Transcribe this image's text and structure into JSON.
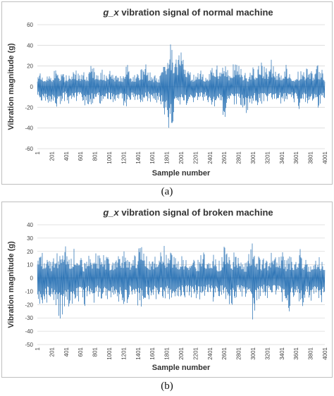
{
  "chart_data": [
    {
      "type": "line",
      "title_prefix": "g_x",
      "title_rest": " vibration signal of normal machine",
      "xlabel": "Sample number",
      "ylabel": "Vibration magnitude (g)",
      "ylim": [
        -60,
        60
      ],
      "yticks": [
        -60,
        -40,
        -20,
        0,
        20,
        40,
        60
      ],
      "xlim": [
        1,
        4001
      ],
      "xticks": [
        1,
        201,
        401,
        601,
        801,
        1001,
        1201,
        1401,
        1601,
        1801,
        2001,
        2201,
        2401,
        2601,
        2801,
        3001,
        3201,
        3401,
        3601,
        3801,
        4001
      ],
      "grid": true,
      "color": "#2e75b6",
      "series": [
        {
          "x_step": 50,
          "envelope_max": [
            14,
            13,
            12,
            15,
            11,
            20,
            12,
            14,
            12,
            14,
            21,
            17,
            15,
            14,
            12,
            28,
            17,
            14,
            18,
            11,
            22,
            13,
            12,
            15,
            12,
            23,
            10,
            14,
            12,
            18,
            24,
            15,
            12,
            11,
            10,
            24,
            18,
            42,
            31,
            30,
            35,
            26,
            16,
            14,
            12,
            20,
            14,
            12,
            14,
            29,
            25,
            16,
            22,
            16,
            20,
            29,
            26,
            15,
            14,
            13,
            22,
            16,
            30,
            21,
            20,
            28,
            17,
            19,
            17,
            21,
            22,
            15,
            13,
            17,
            14,
            18,
            21,
            14,
            21,
            19,
            11
          ],
          "envelope_min": [
            -13,
            -14,
            -12,
            -20,
            -16,
            -18,
            -27,
            -15,
            -13,
            -18,
            -16,
            -15,
            -15,
            -20,
            -17,
            -18,
            -19,
            -14,
            -22,
            -17,
            -15,
            -15,
            -14,
            -13,
            -19,
            -20,
            -14,
            -15,
            -21,
            -18,
            -16,
            -13,
            -17,
            -16,
            -17,
            -28,
            -38,
            -48,
            -36,
            -16,
            -20,
            -19,
            -29,
            -16,
            -14,
            -16,
            -13,
            -16,
            -26,
            -20,
            -21,
            -14,
            -35,
            -14,
            -17,
            -20,
            -17,
            -19,
            -29,
            -23,
            -15,
            -20,
            -19,
            -15,
            -20,
            -17,
            -21,
            -14,
            -18,
            -14,
            -17,
            -15,
            -16,
            -25,
            -15,
            -21,
            -14,
            -15,
            -28,
            -16,
            -18
          ]
        }
      ]
    },
    {
      "type": "line",
      "title_prefix": "g_x",
      "title_rest": " vibration signal of broken machine",
      "xlabel": "Sample number",
      "ylabel": "Vibration magnitude (g)",
      "ylim": [
        -50,
        40
      ],
      "yticks": [
        -50,
        -40,
        -30,
        -20,
        -10,
        0,
        10,
        20,
        30,
        40
      ],
      "xlim": [
        1,
        4001
      ],
      "xticks": [
        1,
        201,
        401,
        601,
        801,
        1001,
        1201,
        1401,
        1601,
        1801,
        2001,
        2201,
        2401,
        2601,
        2801,
        3001,
        3201,
        3401,
        3601,
        3801,
        4001
      ],
      "grid": true,
      "color": "#2e75b6",
      "series": [
        {
          "x_step": 50,
          "envelope_max": [
            17,
            22,
            14,
            18,
            14,
            21,
            20,
            36,
            25,
            18,
            22,
            28,
            20,
            13,
            22,
            15,
            25,
            18,
            22,
            18,
            14,
            16,
            17,
            18,
            21,
            15,
            14,
            18,
            22,
            25,
            23,
            15,
            16,
            20,
            20,
            27,
            18,
            22,
            16,
            15,
            20,
            16,
            12,
            14,
            14,
            14,
            21,
            15,
            12,
            18,
            14,
            14,
            25,
            18,
            15,
            21,
            22,
            14,
            13,
            23,
            29,
            20,
            14,
            15,
            15,
            19,
            19,
            18,
            22,
            13,
            18,
            16,
            15,
            23,
            17,
            14,
            12,
            16,
            20,
            12,
            13
          ],
          "envelope_min": [
            -16,
            -35,
            -24,
            -17,
            -15,
            -20,
            -30,
            -32,
            -20,
            -26,
            -19,
            -22,
            -17,
            -24,
            -15,
            -23,
            -20,
            -15,
            -19,
            -17,
            -24,
            -18,
            -16,
            -19,
            -26,
            -20,
            -15,
            -17,
            -21,
            -22,
            -16,
            -20,
            -15,
            -17,
            -13,
            -18,
            -16,
            -19,
            -14,
            -20,
            -14,
            -16,
            -13,
            -15,
            -15,
            -18,
            -18,
            -13,
            -14,
            -18,
            -15,
            -15,
            -15,
            -28,
            -21,
            -19,
            -13,
            -15,
            -16,
            -17,
            -37,
            -20,
            -15,
            -14,
            -16,
            -15,
            -13,
            -14,
            -20,
            -24,
            -38,
            -15,
            -15,
            -20,
            -24,
            -15,
            -20,
            -16,
            -19,
            -20,
            -17
          ]
        }
      ]
    }
  ],
  "captions": {
    "a": "(a)",
    "b": "(b)"
  }
}
